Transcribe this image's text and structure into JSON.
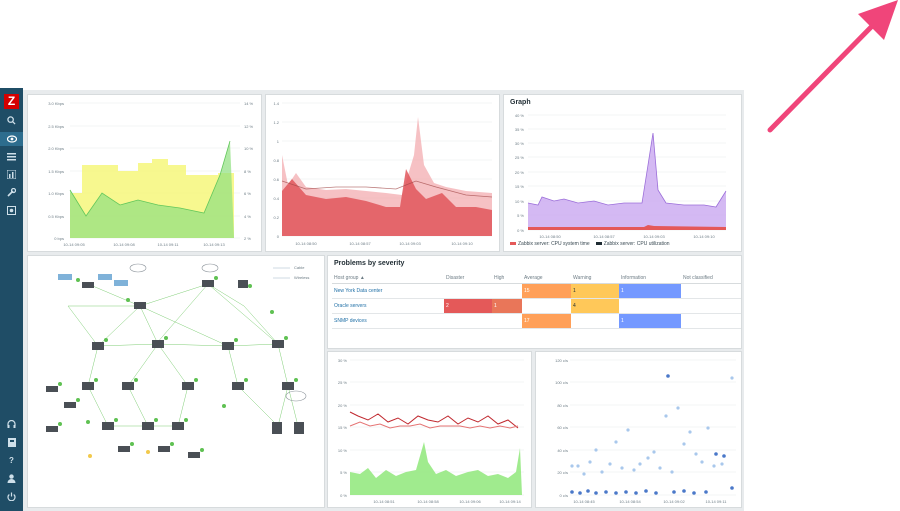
{
  "app": {
    "logo_letter": "Z"
  },
  "sidebar": {
    "items": [
      {
        "icon": "search-icon"
      },
      {
        "icon": "eye-icon",
        "active": true
      },
      {
        "icon": "list-icon"
      },
      {
        "icon": "chart-icon"
      },
      {
        "icon": "wrench-icon"
      },
      {
        "icon": "admin-icon"
      }
    ],
    "bottom_items": [
      {
        "icon": "support-icon"
      },
      {
        "icon": "share-icon"
      },
      {
        "icon": "help-icon"
      },
      {
        "icon": "user-icon"
      },
      {
        "icon": "power-icon"
      }
    ]
  },
  "widgets": {
    "network_chart": {
      "y_left_ticks": [
        "3.0 Kbps",
        "2.5 Kbps",
        "2.0 Kbps",
        "1.5 Kbps",
        "1.0 Kbps",
        "0.5 Kbps",
        "0 bps"
      ],
      "y_right_ticks": [
        "14 %",
        "12 %",
        "10 %",
        "8 %",
        "6 %",
        "4 %",
        "2 %"
      ],
      "x_ticks": [
        "10-14 09:05",
        "10-14 09:08",
        "10-14 09:11",
        "10-14 09:13"
      ]
    },
    "area_chart": {
      "y_ticks": [
        "1.4",
        "1.2",
        "1",
        "0.8",
        "0.6",
        "0.4",
        "0.2",
        "0"
      ],
      "x_ticks": [
        "10-14 08:50",
        "10-14 08:57",
        "10-14 09:03",
        "10-14 09:10"
      ]
    },
    "graph": {
      "title": "Graph",
      "y_ticks": [
        "40 %",
        "35 %",
        "30 %",
        "25 %",
        "20 %",
        "15 %",
        "10 %",
        "5 %",
        "0 %"
      ],
      "x_ticks": [
        "10-14 08:50",
        "10-14 08:57",
        "10-14 09:03",
        "10-14 09:10"
      ],
      "legend": [
        {
          "label": "Zabbix server: CPU system time",
          "color": "#e45959"
        },
        {
          "label": "Zabbix server: CPU utilization",
          "color": "#1f2c33"
        }
      ]
    },
    "map": {
      "legend": [
        "Cable",
        "Wireless"
      ]
    },
    "problems": {
      "title": "Problems by severity",
      "columns": [
        "Host group ▲",
        "Disaster",
        "High",
        "Average",
        "Warning",
        "Information",
        "Not classified"
      ],
      "rows": [
        {
          "group": "New York Data center",
          "disaster": "",
          "high": "",
          "average": "15",
          "warning": "1",
          "information": "1",
          "not_classified": ""
        },
        {
          "group": "Oracle servers",
          "disaster": "2",
          "high": "1",
          "average": "",
          "warning": "4",
          "information": "",
          "not_classified": ""
        },
        {
          "group": "SNMP devices",
          "disaster": "",
          "high": "",
          "average": "17",
          "warning": "",
          "information": "1",
          "not_classified": ""
        }
      ]
    },
    "line_chart": {
      "y_ticks": [
        "30 %",
        "25 %",
        "20 %",
        "15 %",
        "10 %",
        "5 %",
        "0 %"
      ],
      "x_ticks": [
        "10-14 08:51",
        "10-14 08:58",
        "10-14 09:06",
        "10-14 09:14"
      ]
    },
    "scatter_chart": {
      "y_ticks": [
        "120 c/s",
        "100 c/s",
        "80 c/s",
        "60 c/s",
        "40 c/s",
        "20 c/s",
        "0 c/s"
      ],
      "x_ticks": [
        "10-14 08:45",
        "10-14 08:54",
        "10-14 09:02",
        "10-14 09:11"
      ]
    }
  }
}
